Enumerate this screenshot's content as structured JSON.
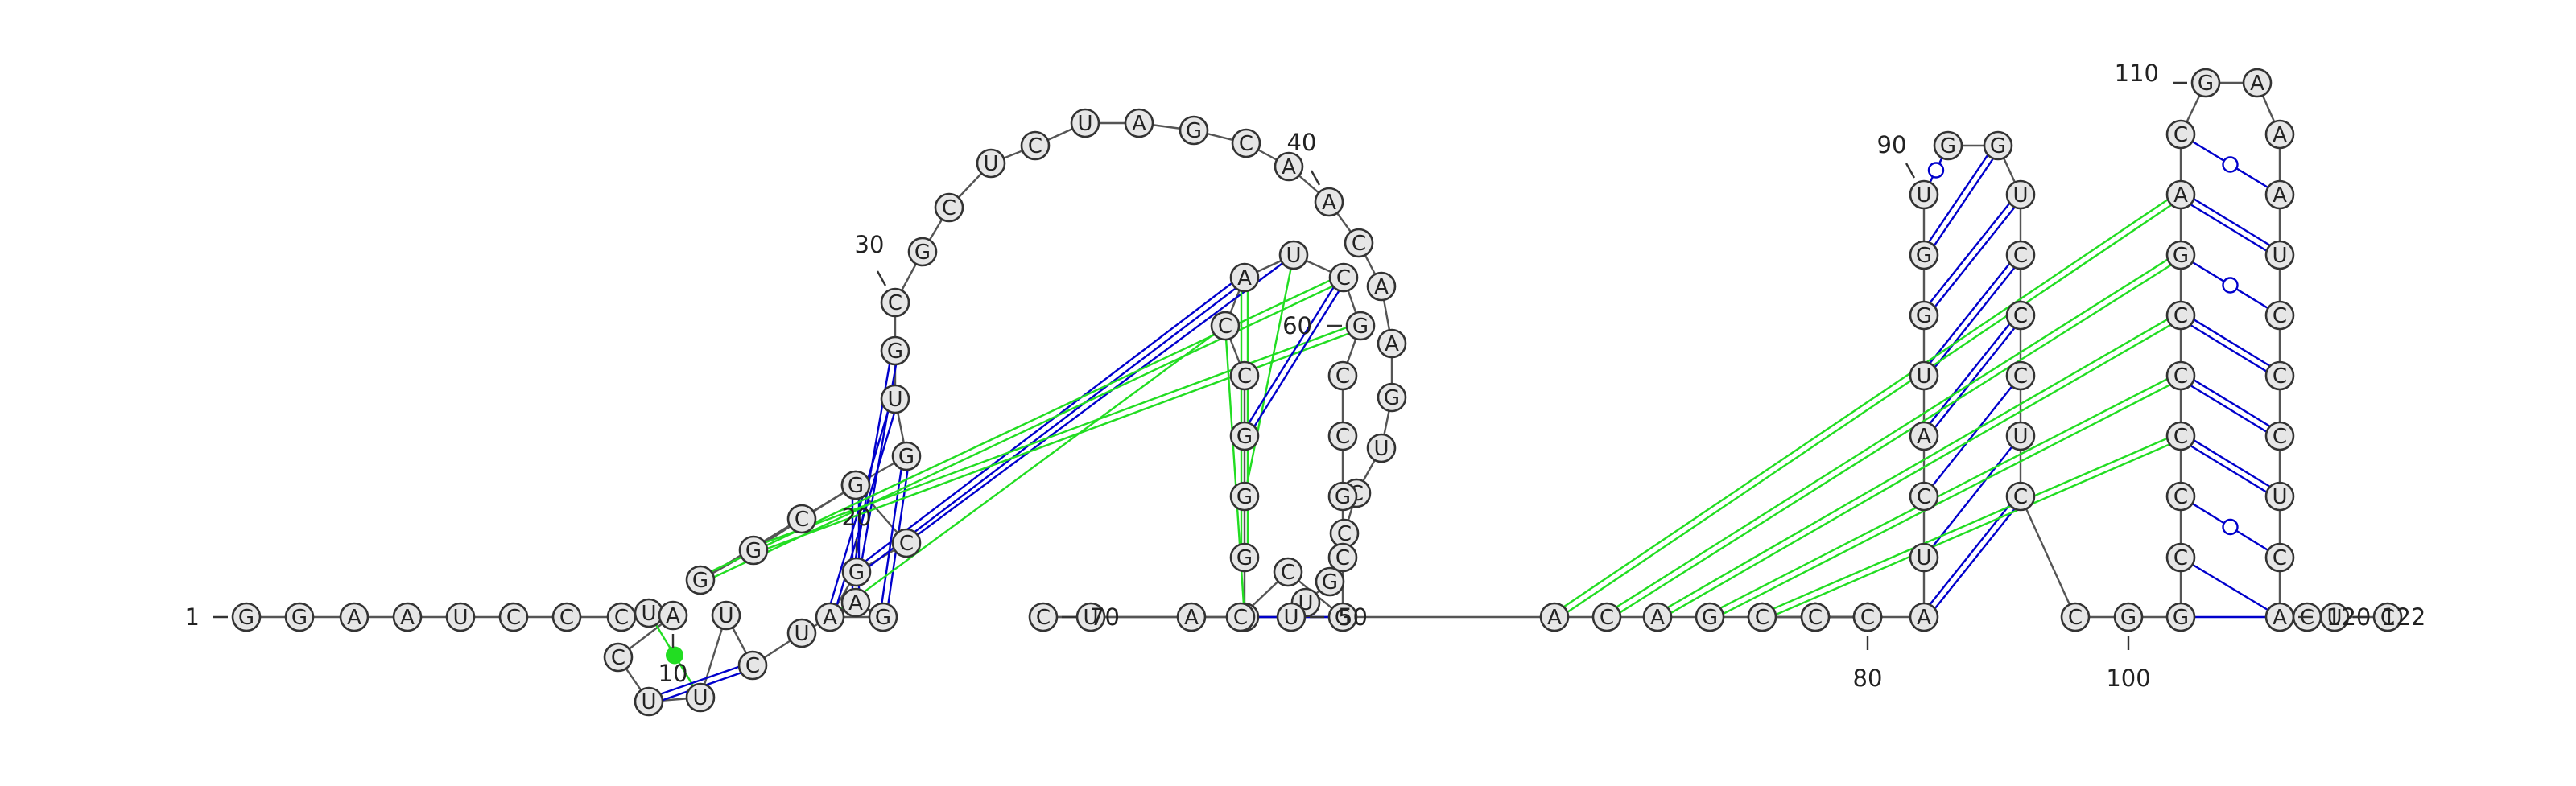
{
  "sequence": "GGAAUCCCUACUUUCUAGAGCUGGCGGUGCGCUCUAGCAACAAGUCCGUUGGGGCCAUCGCCGCGCCAUCACAGCCCCGCCCAUCAUGGUGGUCCCUCCGGCCCCCGACGAAAUCCCUCACUC",
  "position_labels": [
    {
      "pos": 1,
      "text": "1"
    },
    {
      "pos": 10,
      "text": "10"
    },
    {
      "pos": 20,
      "text": "20"
    },
    {
      "pos": 30,
      "text": "30"
    },
    {
      "pos": 40,
      "text": "40"
    },
    {
      "pos": 50,
      "text": "50"
    },
    {
      "pos": 60,
      "text": "60"
    },
    {
      "pos": 70,
      "text": "70"
    },
    {
      "pos": 80,
      "text": "80"
    },
    {
      "pos": 90,
      "text": "90"
    },
    {
      "pos": 100,
      "text": "100"
    },
    {
      "pos": 110,
      "text": "110"
    },
    {
      "pos": 120,
      "text": "120"
    },
    {
      "pos": 122,
      "text": "122"
    }
  ],
  "pairs": [
    {
      "i": 9,
      "j": 13,
      "type": "tertiary-single",
      "color": "#22dd22"
    },
    {
      "i": 12,
      "j": 15,
      "type": "canonical-double",
      "color": "#0000cc"
    },
    {
      "i": 26,
      "j": 17,
      "type": "canonical-double",
      "color": "#0000cc"
    },
    {
      "i": 27,
      "j": 18,
      "type": "canonical-double",
      "color": "#0000cc"
    },
    {
      "i": 28,
      "j": 19,
      "type": "canonical-double",
      "color": "#0000cc"
    },
    {
      "i": 29,
      "j": 20,
      "type": "canonical-double",
      "color": "#0000cc"
    },
    {
      "i": 56,
      "j": 19,
      "type": "tertiary-single",
      "color": "#22dd22"
    },
    {
      "i": 57,
      "j": 20,
      "type": "canonical-double",
      "color": "#0000cc"
    },
    {
      "i": 58,
      "j": 21,
      "type": "canonical-single",
      "color": "#0000cc"
    },
    {
      "i": 59,
      "j": 23,
      "type": "tertiary-double",
      "color": "#22dd22"
    },
    {
      "i": 60,
      "j": 24,
      "type": "tertiary-double",
      "color": "#22dd22"
    },
    {
      "i": 56,
      "j": 51,
      "type": "tertiary-single",
      "color": "#22dd22"
    },
    {
      "i": 57,
      "j": 52,
      "type": "tertiary-double",
      "color": "#22dd22"
    },
    {
      "i": 58,
      "j": 53,
      "type": "tertiary-single",
      "color": "#22dd22"
    },
    {
      "i": 59,
      "j": 54,
      "type": "canonical-double",
      "color": "#0000cc"
    },
    {
      "i": 65,
      "j": 67,
      "type": "canonical-single",
      "color": "#0000cc"
    },
    {
      "i": 83,
      "j": 98,
      "type": "canonical-double",
      "color": "#0000cc"
    },
    {
      "i": 84,
      "j": 97,
      "type": "canonical-single",
      "color": "#0000cc"
    },
    {
      "i": 85,
      "j": 96,
      "type": "canonical-single",
      "color": "#0000cc"
    },
    {
      "i": 86,
      "j": 95,
      "type": "canonical-double",
      "color": "#0000cc"
    },
    {
      "i": 87,
      "j": 94,
      "type": "canonical-double",
      "color": "#0000cc"
    },
    {
      "i": 88,
      "j": 93,
      "type": "canonical-double",
      "color": "#0000cc"
    },
    {
      "i": 89,
      "j": 92,
      "type": "canonical-double",
      "color": "#0000cc"
    },
    {
      "i": 90,
      "j": 91,
      "type": "wobble",
      "color": "#0000cc"
    },
    {
      "i": 101,
      "j": 121,
      "type": "canonical-single",
      "color": "#0000cc"
    },
    {
      "i": 102,
      "j": 120,
      "type": "canonical-single",
      "color": "#0000cc"
    },
    {
      "i": 103,
      "j": 119,
      "type": "wobble",
      "color": "#0000cc"
    },
    {
      "i": 104,
      "j": 118,
      "type": "canonical-double",
      "color": "#0000cc"
    },
    {
      "i": 105,
      "j": 117,
      "type": "canonical-double",
      "color": "#0000cc"
    },
    {
      "i": 106,
      "j": 116,
      "type": "canonical-double",
      "color": "#0000cc"
    },
    {
      "i": 107,
      "j": 115,
      "type": "wobble",
      "color": "#0000cc"
    },
    {
      "i": 108,
      "j": 114,
      "type": "canonical-double",
      "color": "#0000cc"
    },
    {
      "i": 109,
      "j": 113,
      "type": "wobble",
      "color": "#0000cc"
    },
    {
      "i": 71,
      "j": 108,
      "type": "tertiary-double",
      "color": "#22dd22"
    },
    {
      "i": 72,
      "j": 107,
      "type": "tertiary-double",
      "color": "#22dd22"
    },
    {
      "i": 73,
      "j": 106,
      "type": "tertiary-double",
      "color": "#22dd22"
    },
    {
      "i": 74,
      "j": 105,
      "type": "tertiary-double",
      "color": "#22dd22"
    },
    {
      "i": 75,
      "j": 104,
      "type": "tertiary-double",
      "color": "#22dd22"
    }
  ],
  "colors": {
    "canonical_pair": "#0000cc",
    "tertiary_pair": "#22dd22",
    "nucleotide_fill": "#e6e6e6",
    "nucleotide_stroke": "#333333",
    "backbone": "#555555"
  }
}
